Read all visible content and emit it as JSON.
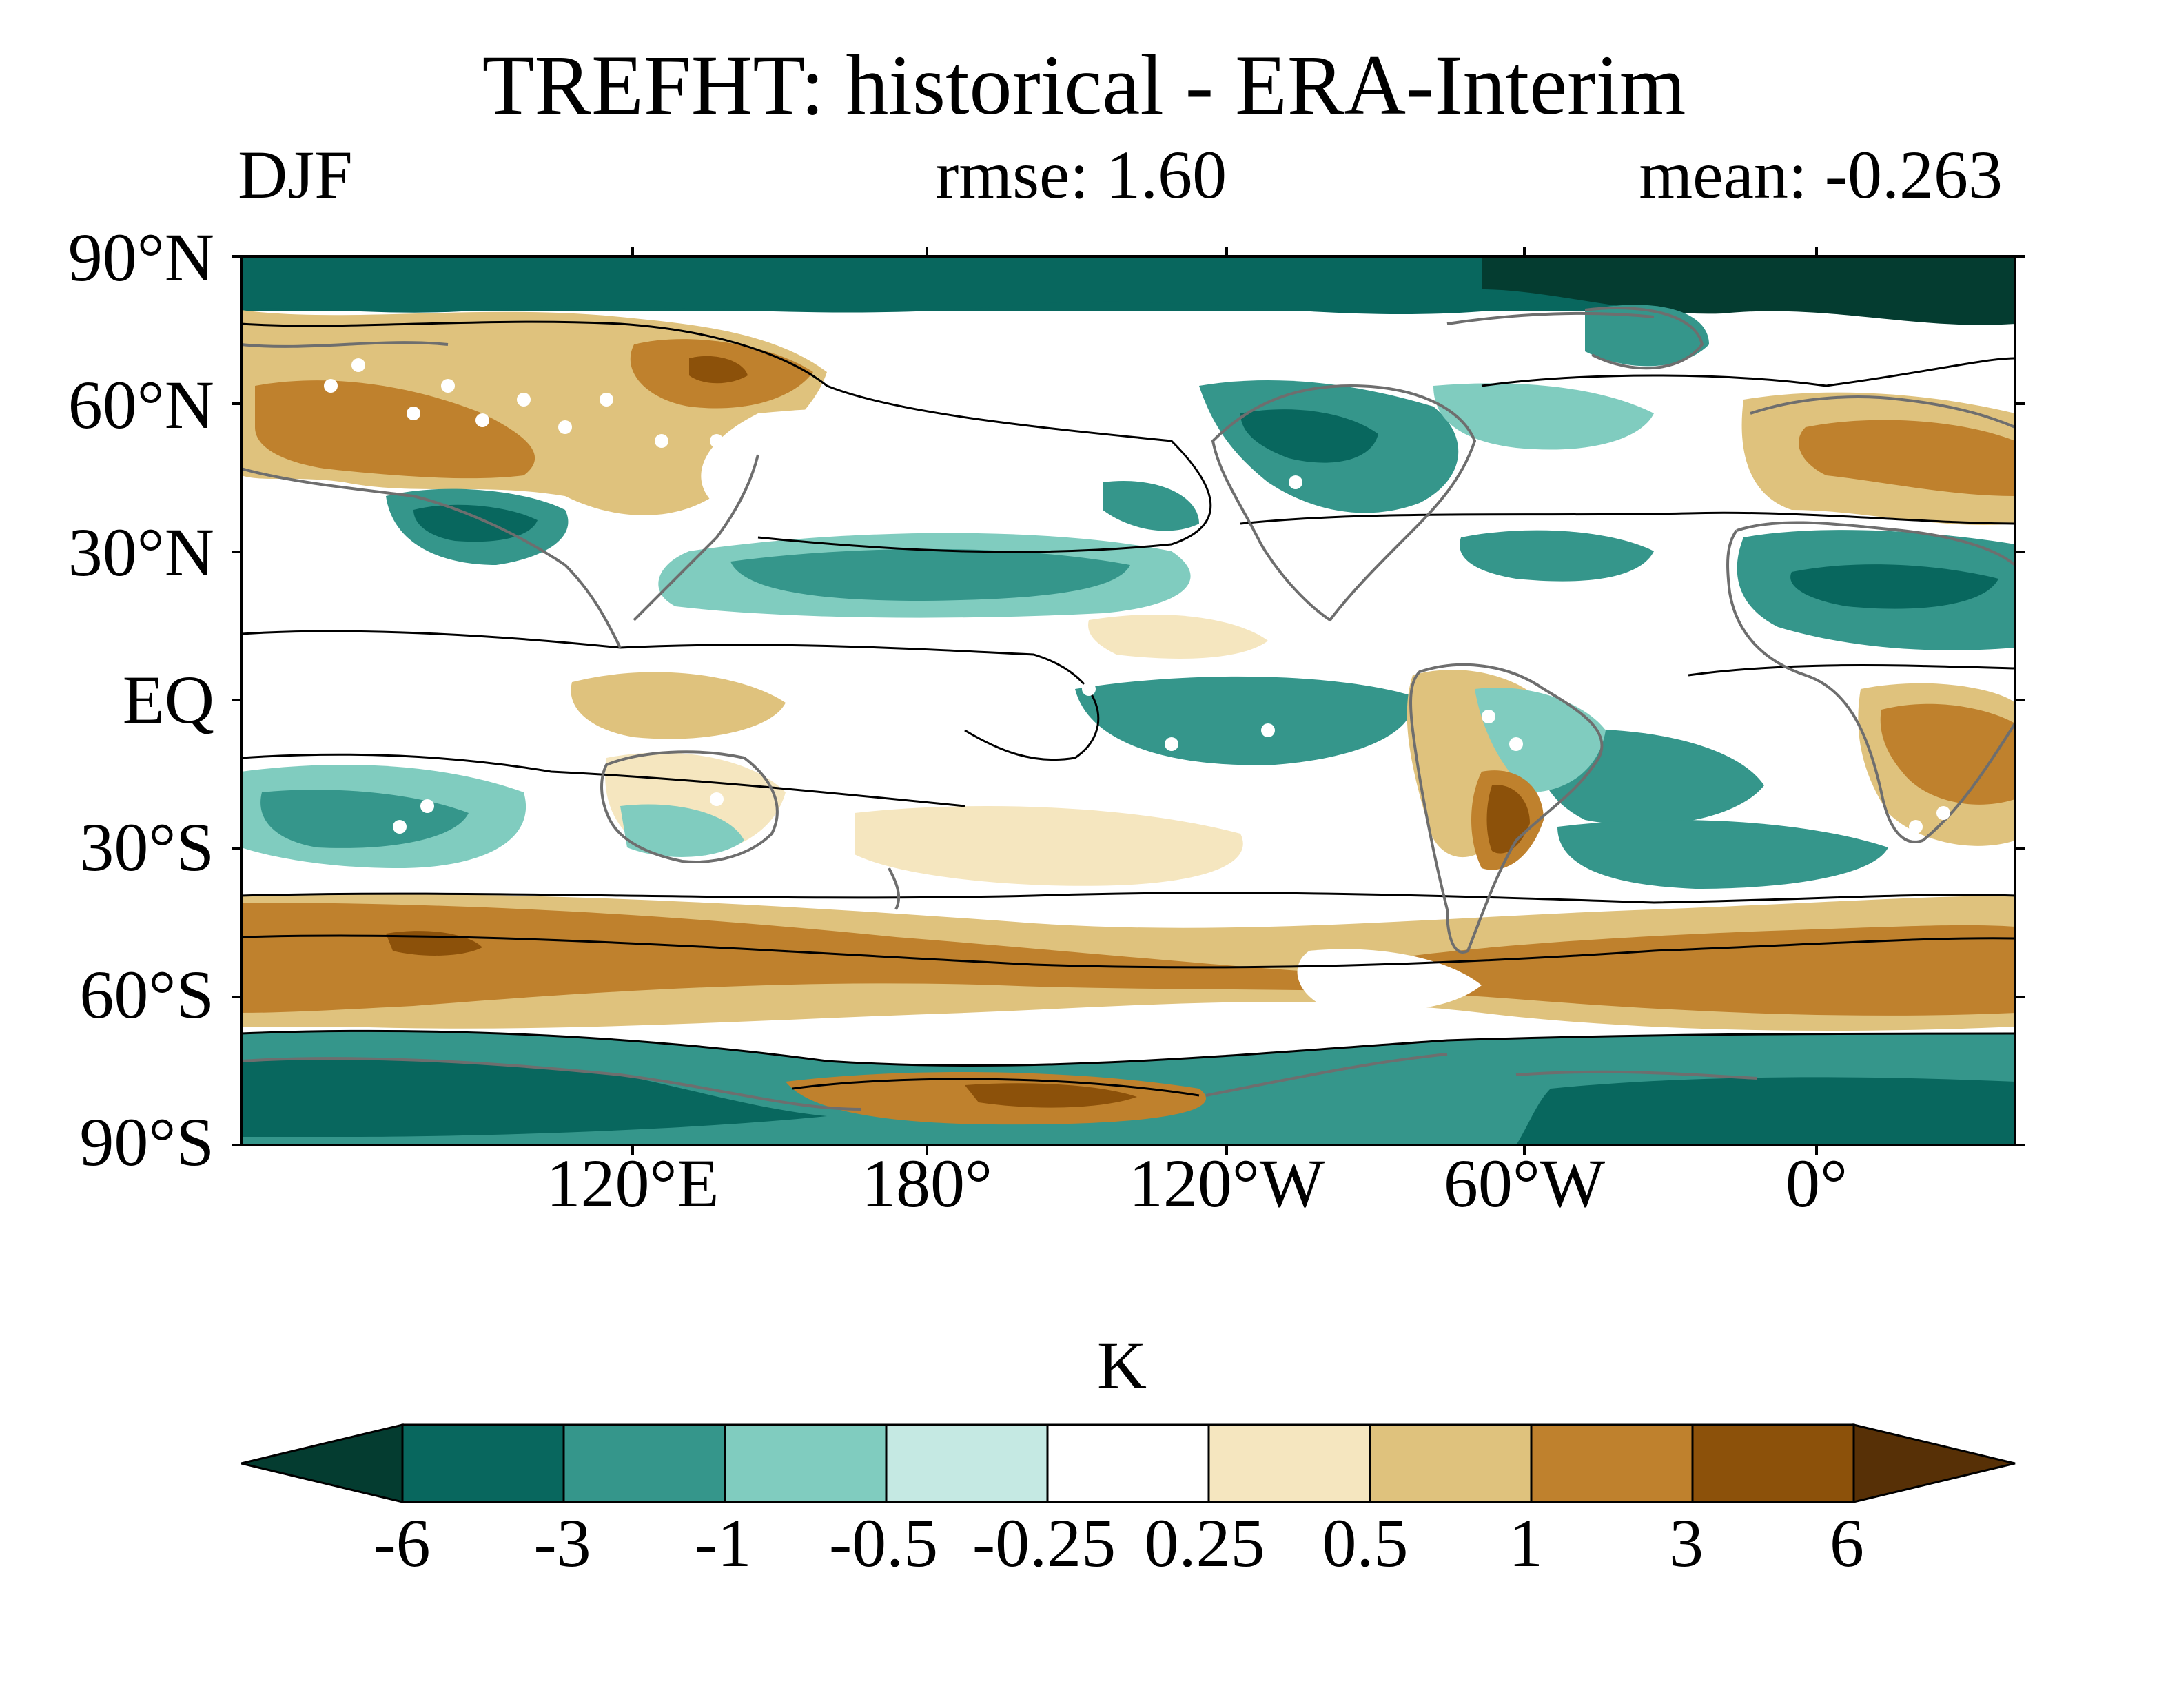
{
  "title": "TREFHT: historical - ERA-Interim",
  "season": "DJF",
  "rmse_text": "rmse: 1.60",
  "mean_text": "mean: -0.263",
  "lat_labels": [
    "90°N",
    "60°N",
    "30°N",
    "EQ",
    "30°S",
    "60°S",
    "90°S"
  ],
  "lon_labels": [
    "120°E",
    "180°",
    "120°W",
    "60°W",
    "0°"
  ],
  "colorbar": {
    "units": "K",
    "levels": [
      "-6",
      "-3",
      "-1",
      "-0.5",
      "-0.25",
      "0.25",
      "0.5",
      "1",
      "3",
      "6"
    ],
    "colors": [
      "#043c30",
      "#08675e",
      "#35968b",
      "#80ccbf",
      "#c5e9e3",
      "#ffffff",
      "#f5e6bf",
      "#dfc27d",
      "#bf812d",
      "#8c510a",
      "#573006"
    ]
  },
  "colors": {
    "coastline": "#6e6e6e",
    "zero_contour": "#000000",
    "frame": "#000000"
  },
  "map": {
    "projection": "cylindrical-equidistant",
    "central_longitude": "centered near the dateline (~40°E to ~400°E)",
    "field": "DJF 2 m air temperature bias (model minus reanalysis)",
    "regions": [
      {
        "name": "arctic-ocean",
        "level": "-3 to -6"
      },
      {
        "name": "north-pacific",
        "level": "-0.25 to 0.25"
      },
      {
        "name": "subtropical-north-pacific",
        "level": "-1 to -3"
      },
      {
        "name": "north-america-west",
        "level": "-1 to -3"
      },
      {
        "name": "greenland",
        "level": "-1 to -3"
      },
      {
        "name": "siberia",
        "level": "1 to 6"
      },
      {
        "name": "eurasia-midlatitudes",
        "level": "1 to 3"
      },
      {
        "name": "north-africa",
        "level": "-1 to -3"
      },
      {
        "name": "southern-africa",
        "level": "1 to 3"
      },
      {
        "name": "south-america-east",
        "level": "-1 to -3"
      },
      {
        "name": "argentina",
        "level": "3 to 6"
      },
      {
        "name": "tropical-east-pacific",
        "level": "-1 to -3"
      },
      {
        "name": "southern-ocean",
        "level": "1 to 3"
      },
      {
        "name": "antarctica",
        "level": "-1 to -6"
      },
      {
        "name": "antarctic-plateau",
        "level": "1 to 3"
      }
    ]
  }
}
